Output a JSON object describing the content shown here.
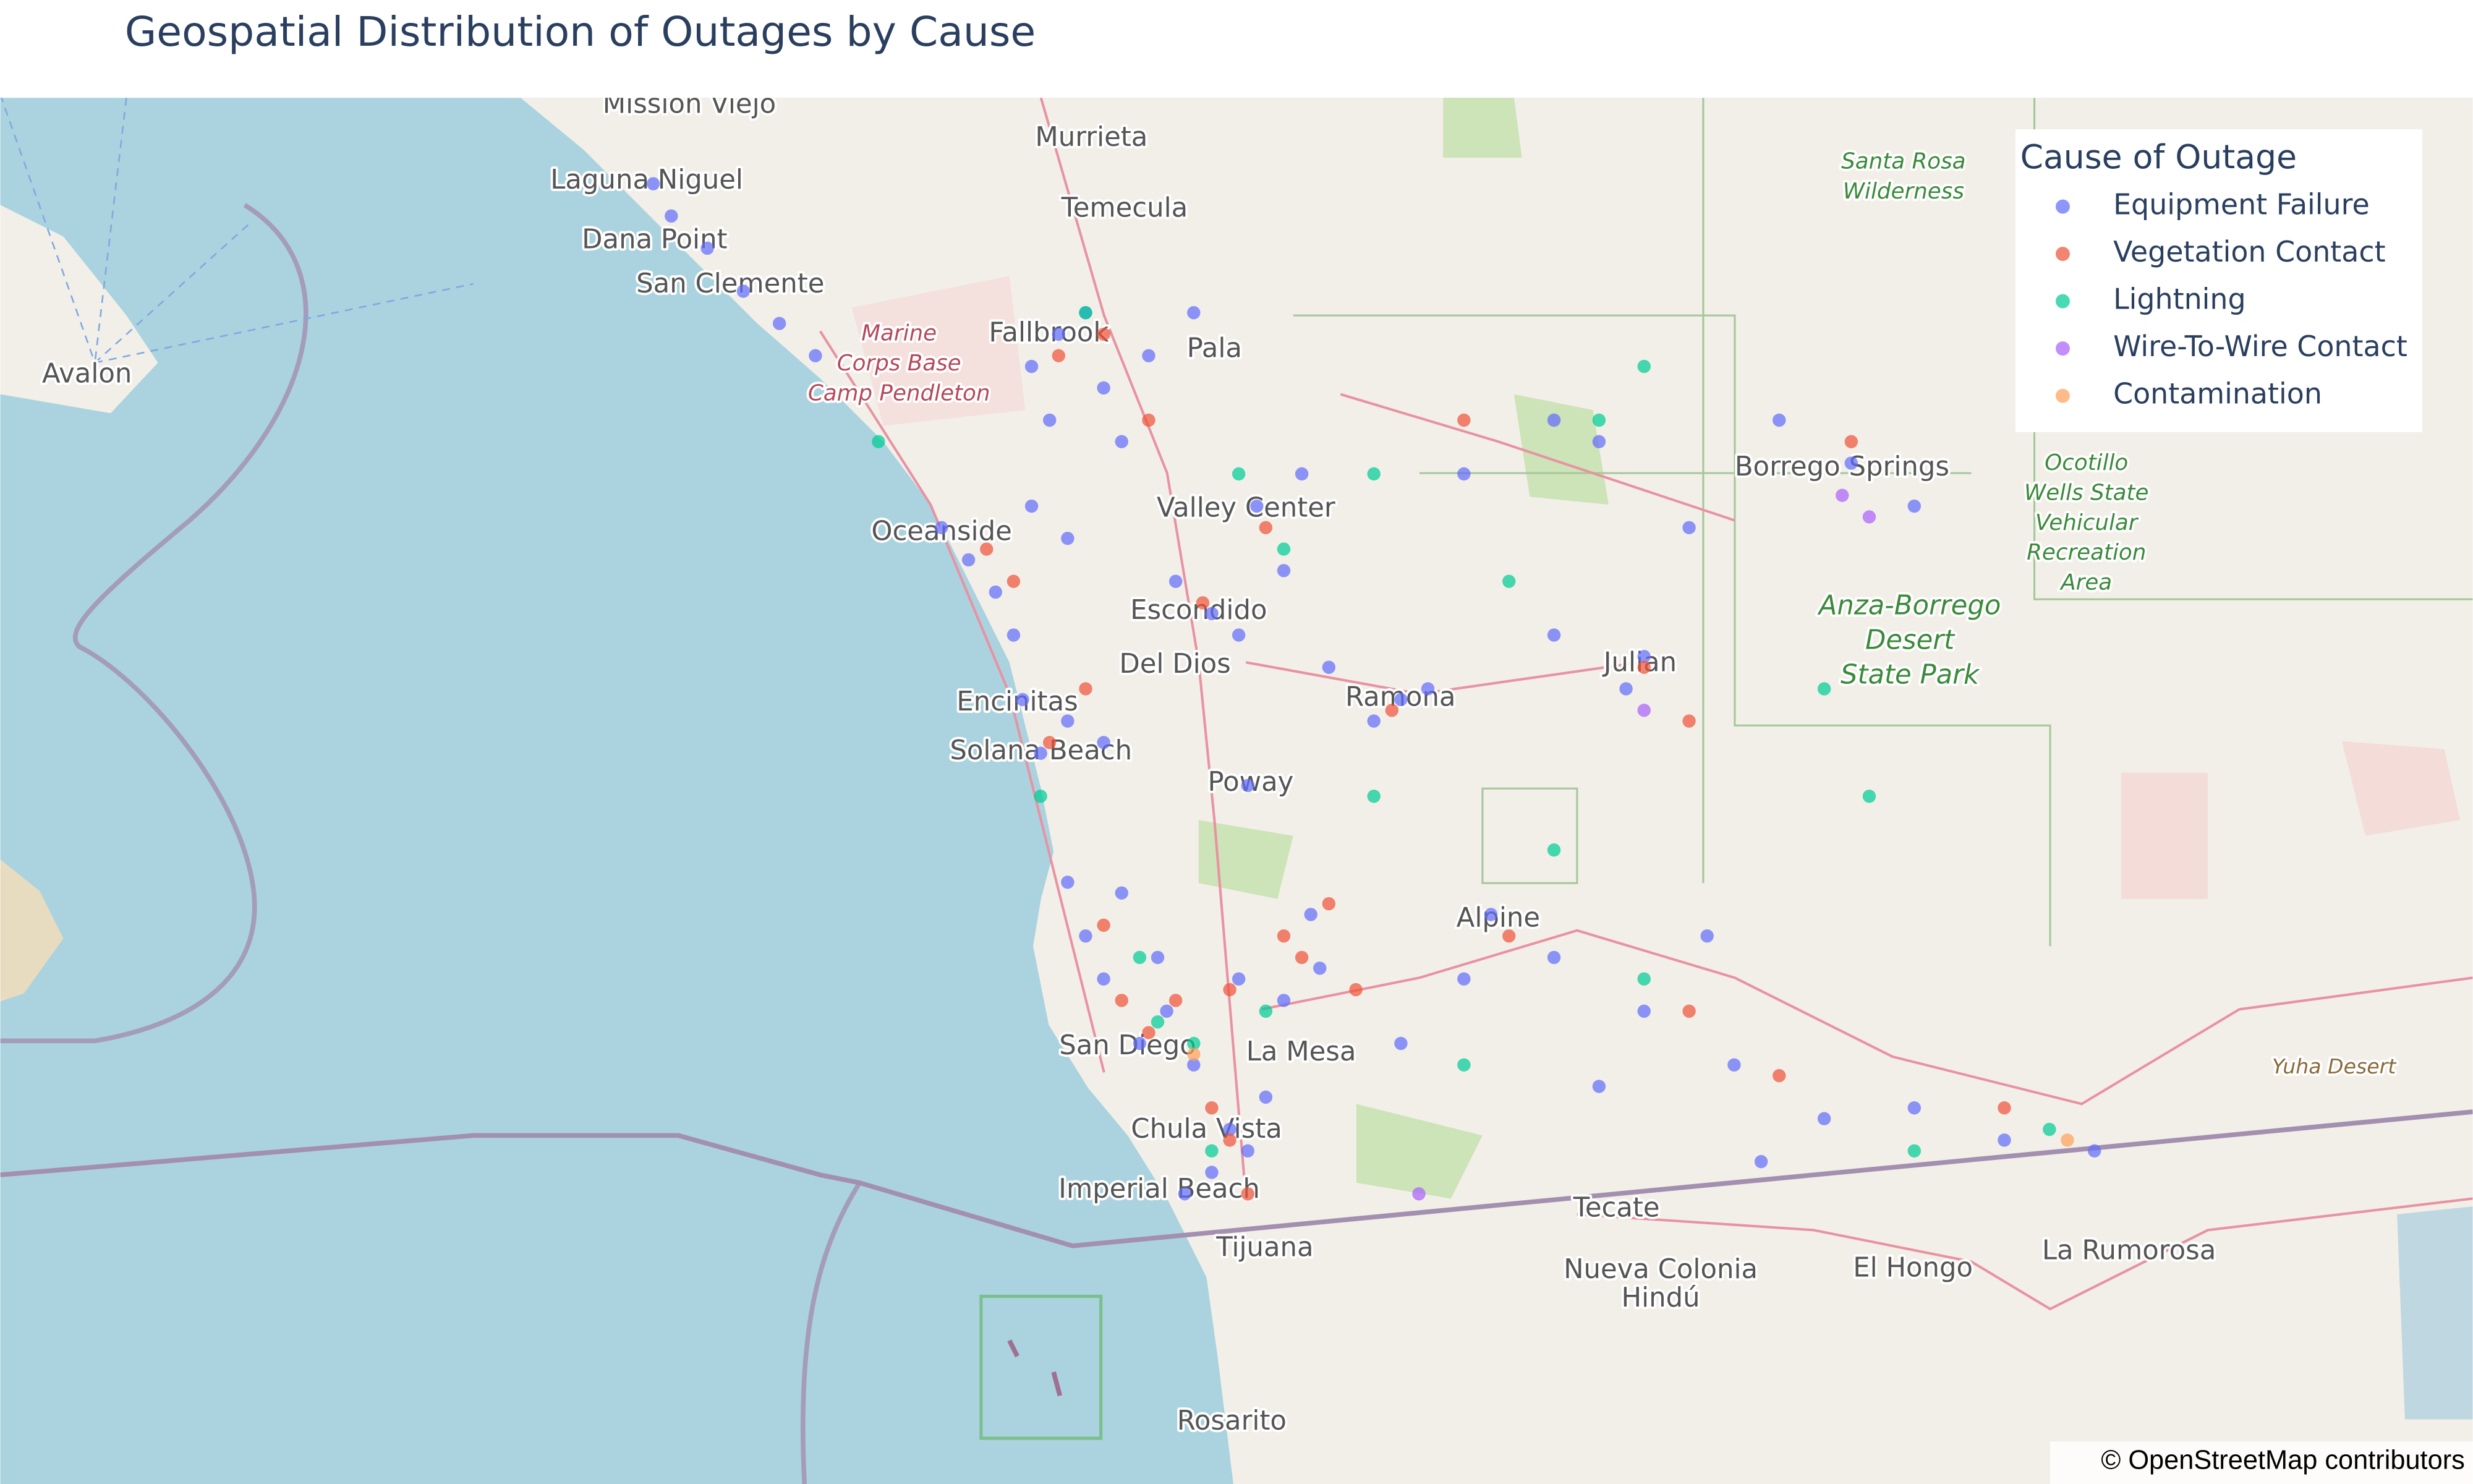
{
  "chart_data": {
    "type": "scatter_map",
    "title": "Geospatial Distribution of Outages by Cause",
    "legend_title": "Cause of Outage",
    "legend_position": "top-right",
    "attribution": "© OpenStreetMap contributors",
    "lonlim": [
      -118.425,
      -115.68
    ],
    "latlim": [
      32.31,
      33.6
    ],
    "series": [
      {
        "name": "Equipment Failure",
        "color": "#636efa",
        "lon": [
          -117.7,
          -117.68,
          -117.64,
          -117.6,
          -117.56,
          -117.52,
          -117.25,
          -117.22,
          -117.28,
          -117.2,
          -117.15,
          -117.1,
          -117.26,
          -117.18,
          -117.38,
          -117.35,
          -117.32,
          -117.3,
          -117.28,
          -117.24,
          -117.03,
          -117.08,
          -117.05,
          -117.12,
          -116.98,
          -117.0,
          -117.29,
          -117.27,
          -117.24,
          -117.2,
          -117.04,
          -116.87,
          -116.9,
          -116.84,
          -116.95,
          -116.6,
          -116.62,
          -116.7,
          -116.55,
          -116.45,
          -116.37,
          -116.3,
          -117.16,
          -117.2,
          -117.22,
          -117.13,
          -117.1,
          -117.05,
          -117.0,
          -116.96,
          -116.97,
          -117.18,
          -117.14,
          -117.24,
          -117.06,
          -117.08,
          -117.11,
          -117.04,
          -117.02,
          -116.77,
          -116.87,
          -116.8,
          -116.7,
          -116.6,
          -116.53,
          -116.47,
          -116.4,
          -116.3,
          -116.2,
          -116.1,
          -116.5,
          -116.65,
          -116.7,
          -116.65,
          -116.8
        ],
        "lat": [
          33.52,
          33.49,
          33.46,
          33.42,
          33.39,
          33.36,
          33.38,
          33.4,
          33.35,
          33.33,
          33.36,
          33.4,
          33.3,
          33.28,
          33.2,
          33.17,
          33.14,
          33.1,
          33.22,
          33.19,
          33.22,
          33.12,
          33.1,
          33.15,
          33.25,
          33.16,
          33.04,
          32.99,
          33.02,
          33.0,
          32.96,
          33.04,
          33.02,
          33.05,
          33.07,
          33.08,
          33.05,
          33.1,
          33.2,
          33.3,
          33.26,
          33.22,
          32.72,
          32.78,
          32.82,
          32.75,
          32.7,
          32.78,
          32.76,
          32.79,
          32.84,
          32.86,
          32.8,
          32.87,
          32.64,
          32.6,
          32.58,
          32.62,
          32.67,
          32.84,
          32.72,
          32.78,
          32.8,
          32.75,
          32.82,
          32.61,
          32.65,
          32.66,
          32.63,
          32.62,
          32.7,
          32.68,
          33.3,
          33.28,
          33.25
        ]
      },
      {
        "name": "Vegetation Contact",
        "color": "#EF553B",
        "lon": [
          -117.25,
          -117.2,
          -117.15,
          -117.3,
          -117.33,
          -117.09,
          -117.02,
          -117.26,
          -117.22,
          -116.88,
          -116.6,
          -116.55,
          -116.37,
          -116.8,
          -117.15,
          -117.12,
          -117.06,
          -116.98,
          -117.0,
          -117.18,
          -117.06,
          -117.08,
          -117.04,
          -116.95,
          -116.75,
          -116.45,
          -116.2,
          -116.55,
          -117.2,
          -116.92
        ],
        "lat": [
          33.36,
          33.38,
          33.3,
          33.15,
          33.18,
          33.13,
          33.2,
          33.0,
          33.05,
          33.03,
          33.07,
          33.02,
          33.28,
          33.3,
          32.73,
          32.76,
          32.77,
          32.8,
          32.82,
          32.76,
          32.63,
          32.66,
          32.58,
          32.85,
          32.82,
          32.69,
          32.66,
          32.75,
          32.83,
          32.77
        ]
      },
      {
        "name": "Lightning",
        "color": "#00cc96",
        "lon": [
          -117.45,
          -117.22,
          -117.05,
          -117.0,
          -116.9,
          -116.6,
          -116.75,
          -116.65,
          -116.4,
          -116.35,
          -117.14,
          -117.1,
          -117.16,
          -117.02,
          -117.08,
          -116.8,
          -116.6,
          -116.3,
          -116.15,
          -117.27,
          -116.9,
          -116.7
        ],
        "lat": [
          33.28,
          33.4,
          33.25,
          33.18,
          33.25,
          33.35,
          33.15,
          33.3,
          33.05,
          32.95,
          32.74,
          32.72,
          32.8,
          32.75,
          32.62,
          32.7,
          32.78,
          32.62,
          32.64,
          32.95,
          32.95,
          32.9
        ]
      },
      {
        "name": "Wire-To-Wire Contact",
        "color": "#ab63fa",
        "lon": [
          -116.38,
          -116.35,
          -116.85,
          -116.6
        ],
        "lat": [
          33.23,
          33.21,
          32.58,
          33.03
        ]
      },
      {
        "name": "Contamination",
        "color": "#FFA15A",
        "lon": [
          -116.13,
          -117.1
        ],
        "lat": [
          32.63,
          32.71
        ]
      }
    ],
    "map_labels": [
      [
        "Mission Viejo"
      ],
      [
        "Murrieta"
      ],
      [
        "Laguna Niguel"
      ],
      [
        "Temecula"
      ],
      [
        "Dana Point"
      ],
      [
        "San Clemente"
      ],
      [
        "Avalon"
      ],
      [
        "Marine",
        "Corps Base",
        "Camp Pendleton"
      ],
      [
        "Fallbrook"
      ],
      [
        "Pala"
      ],
      [
        "Oceanside"
      ],
      [
        "Valley Center"
      ],
      [
        "Escondido"
      ],
      [
        "Del Dios"
      ],
      [
        "Encinitas"
      ],
      [
        "Solana Beach"
      ],
      [
        "Poway"
      ],
      [
        "Ramona"
      ],
      [
        "Julian"
      ],
      [
        "Borrego Springs"
      ],
      [
        "Santa Rosa",
        "Wilderness"
      ],
      [
        "Ocotillo",
        "Wells State",
        "Vehicular",
        "Recreation",
        "Area"
      ],
      [
        "Anza-Borrego",
        "Desert",
        "State Park"
      ],
      [
        "Alpine"
      ],
      [
        "San Diego"
      ],
      [
        "La Mesa"
      ],
      [
        "Chula Vista"
      ],
      [
        "Imperial Beach"
      ],
      [
        "Tijuana"
      ],
      [
        "Tecate"
      ],
      [
        "Nueva Colonia",
        "Hindú"
      ],
      [
        "El Hongo"
      ],
      [
        "La Rumorosa"
      ],
      [
        "Yuha Desert"
      ],
      [
        "Rosarito"
      ]
    ]
  }
}
